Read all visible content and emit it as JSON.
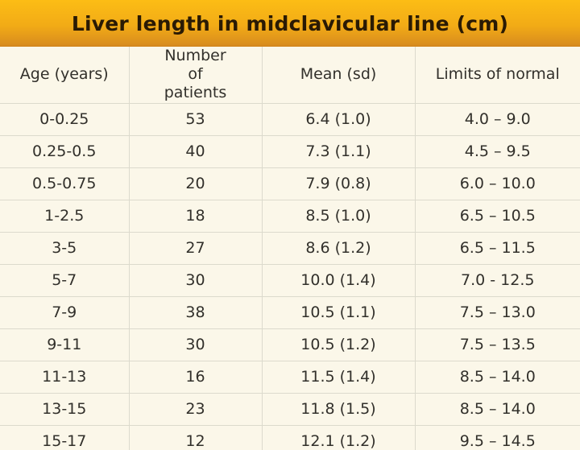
{
  "title": "Liver length in midclavicular line (cm)",
  "chart_data": {
    "type": "table",
    "title": "Liver length in midclavicular line (cm)",
    "columns": [
      "Age (years)",
      "Number of patients",
      "Mean (sd)",
      "Limits of normal"
    ],
    "rows": [
      [
        "0-0.25",
        "53",
        "6.4 (1.0)",
        "4.0 – 9.0"
      ],
      [
        "0.25-0.5",
        "40",
        "7.3 (1.1)",
        "4.5 – 9.5"
      ],
      [
        "0.5-0.75",
        "20",
        "7.9 (0.8)",
        "6.0 – 10.0"
      ],
      [
        "1-2.5",
        "18",
        "8.5 (1.0)",
        "6.5 – 10.5"
      ],
      [
        "3-5",
        "27",
        "8.6 (1.2)",
        "6.5 – 11.5"
      ],
      [
        "5-7",
        "30",
        "10.0 (1.4)",
        "7.0 - 12.5"
      ],
      [
        "7-9",
        "38",
        "10.5 (1.1)",
        "7.5 – 13.0"
      ],
      [
        "9-11",
        "30",
        "10.5 (1.2)",
        "7.5 – 13.5"
      ],
      [
        "11-13",
        "16",
        "11.5 (1.4)",
        "8.5 – 14.0"
      ],
      [
        "13-15",
        "23",
        "11.8 (1.5)",
        "8.5 – 14.0"
      ],
      [
        "15-17",
        "12",
        "12.1 (1.2)",
        "9.5 – 14.5"
      ]
    ]
  },
  "colors": {
    "title_bar_top": "#fcbd15",
    "title_bar_bottom": "#d98d1e",
    "title_text": "#2a1a04",
    "table_bg": "#fbf7e9",
    "grid_line": "#dcdacd",
    "cell_text": "#32302b"
  }
}
